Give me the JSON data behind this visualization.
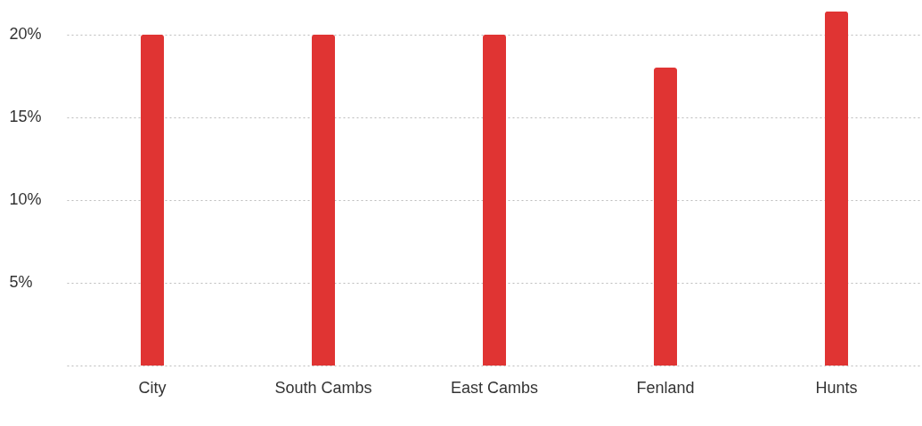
{
  "chart_data": {
    "type": "bar",
    "categories": [
      "City",
      "South Cambs",
      "East Cambs",
      "Fenland",
      "Hunts"
    ],
    "values": [
      20,
      20,
      20,
      18,
      21.4
    ],
    "color": "#e03433",
    "ylim": [
      0,
      21.5
    ],
    "yticks": [
      {
        "value": 0,
        "label": null
      },
      {
        "value": 5,
        "label": "5%"
      },
      {
        "value": 10,
        "label": "10%"
      },
      {
        "value": 15,
        "label": "15%"
      },
      {
        "value": 20,
        "label": "20%"
      }
    ],
    "grid": "y"
  }
}
